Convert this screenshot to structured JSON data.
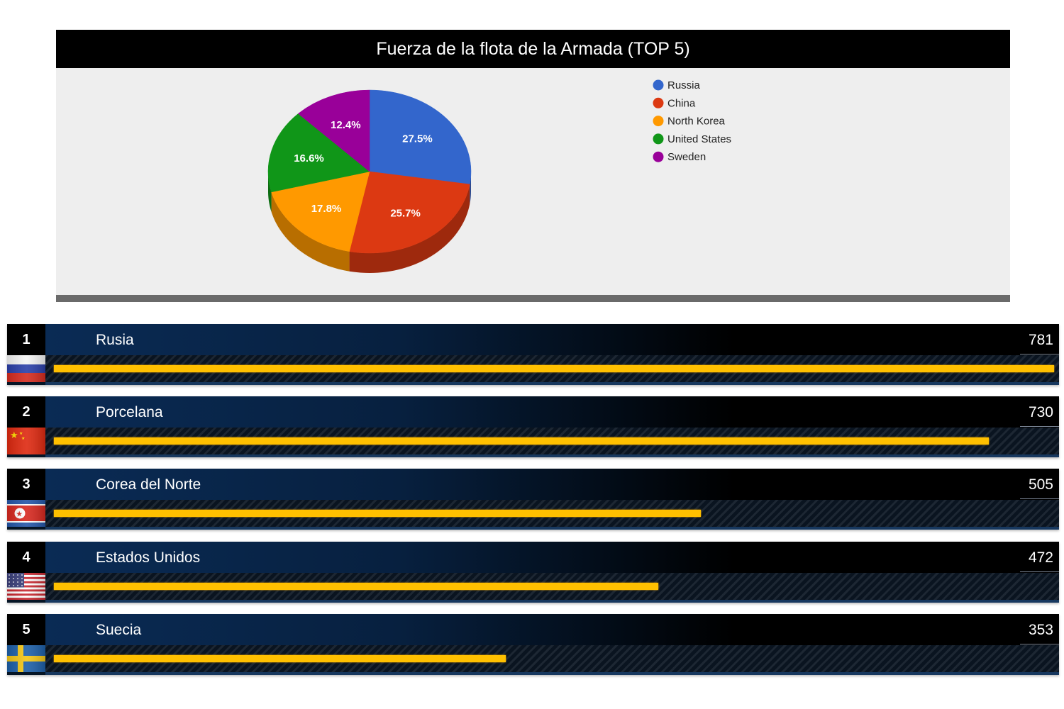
{
  "pie_title": "Fuerza de la flota de la Armada (TOP 5)",
  "chart_data": [
    {
      "type": "pie",
      "title": "Fuerza de la flota de la Armada (TOP 5)",
      "categories": [
        "Russia",
        "China",
        "North Korea",
        "United States",
        "Sweden"
      ],
      "values": [
        781,
        730,
        505,
        472,
        353
      ],
      "percent_labels": [
        "27.5%",
        "25.7%",
        "17.8%",
        "16.6%",
        "12.4%"
      ],
      "colors": [
        "#3366cc",
        "#dc3912",
        "#ff9900",
        "#109618",
        "#990099"
      ],
      "legend_position": "right"
    },
    {
      "type": "bar",
      "orientation": "horizontal",
      "categories": [
        "Rusia",
        "Porcelana",
        "Corea del Norte",
        "Estados Unidos",
        "Suecia"
      ],
      "values": [
        781,
        730,
        505,
        472,
        353
      ],
      "xlim": [
        0,
        781
      ]
    }
  ],
  "ranking": [
    {
      "rank": "1",
      "name": "Rusia",
      "value": "781",
      "flag": "russia-flag-icon"
    },
    {
      "rank": "2",
      "name": "Porcelana",
      "value": "730",
      "flag": "china-flag-icon"
    },
    {
      "rank": "3",
      "name": "Corea del Norte",
      "value": "505",
      "flag": "north-korea-flag-icon"
    },
    {
      "rank": "4",
      "name": "Estados Unidos",
      "value": "472",
      "flag": "usa-flag-icon"
    },
    {
      "rank": "5",
      "name": "Suecia",
      "value": "353",
      "flag": "sweden-flag-icon"
    }
  ],
  "bar_color": "#ffc000"
}
